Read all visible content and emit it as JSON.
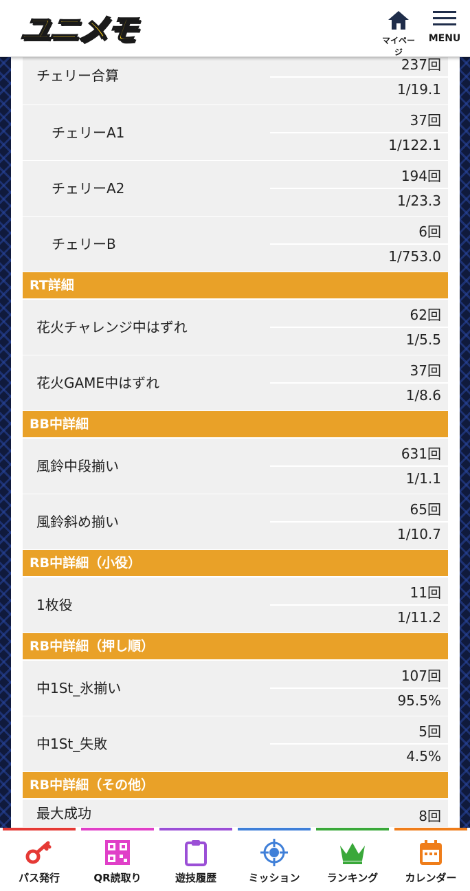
{
  "header": {
    "logo_text": "ユニメモ",
    "mypage_label": "マイページ",
    "menu_label": "MENU"
  },
  "stats": {
    "cherry_total": {
      "label": "チェリー合算",
      "count": "237回",
      "prob": "1/19.1"
    },
    "cherry_a1": {
      "label": "チェリーA1",
      "count": "37回",
      "prob": "1/122.1"
    },
    "cherry_a2": {
      "label": "チェリーA2",
      "count": "194回",
      "prob": "1/23.3"
    },
    "cherry_b": {
      "label": "チェリーB",
      "count": "6回",
      "prob": "1/753.0"
    }
  },
  "sections": {
    "rt": "RT詳細",
    "bb": "BB中詳細",
    "rb_small": "RB中詳細（小役）",
    "rb_order": "RB中詳細（押し順）",
    "rb_other": "RB中詳細（その他）"
  },
  "rt_rows": {
    "hanabi_challenge_miss": {
      "label": "花火チャレンジ中はずれ",
      "count": "62回",
      "prob": "1/5.5"
    },
    "hanabi_game_miss": {
      "label": "花火GAME中はずれ",
      "count": "37回",
      "prob": "1/8.6"
    }
  },
  "bb_rows": {
    "furin_middle": {
      "label": "風鈴中段揃い",
      "count": "631回",
      "prob": "1/1.1"
    },
    "furin_diagonal": {
      "label": "風鈴斜め揃い",
      "count": "65回",
      "prob": "1/10.7"
    }
  },
  "rb_small_rows": {
    "one_mai": {
      "label": "1枚役",
      "count": "11回",
      "prob": "1/11.2"
    }
  },
  "rb_order_rows": {
    "middle_ice": {
      "label": "中1St_氷揃い",
      "count": "107回",
      "prob": "95.5%"
    },
    "middle_fail": {
      "label": "中1St_失敗",
      "count": "5回",
      "prob": "4.5%"
    }
  },
  "rb_other_rows": {
    "max_success": {
      "label": "最大成功",
      "count": "8回"
    }
  },
  "bottom_nav": {
    "pass": {
      "label": "パス発行",
      "color": "#e53935"
    },
    "qr": {
      "label": "QR読取り",
      "color": "#e040c8"
    },
    "history": {
      "label": "遊技履歴",
      "color": "#9b4fd6"
    },
    "mission": {
      "label": "ミッション",
      "color": "#3f7fd8"
    },
    "ranking": {
      "label": "ランキング",
      "color": "#3aa83a"
    },
    "calendar": {
      "label": "カレンダー",
      "color": "#ef7d1a"
    }
  }
}
